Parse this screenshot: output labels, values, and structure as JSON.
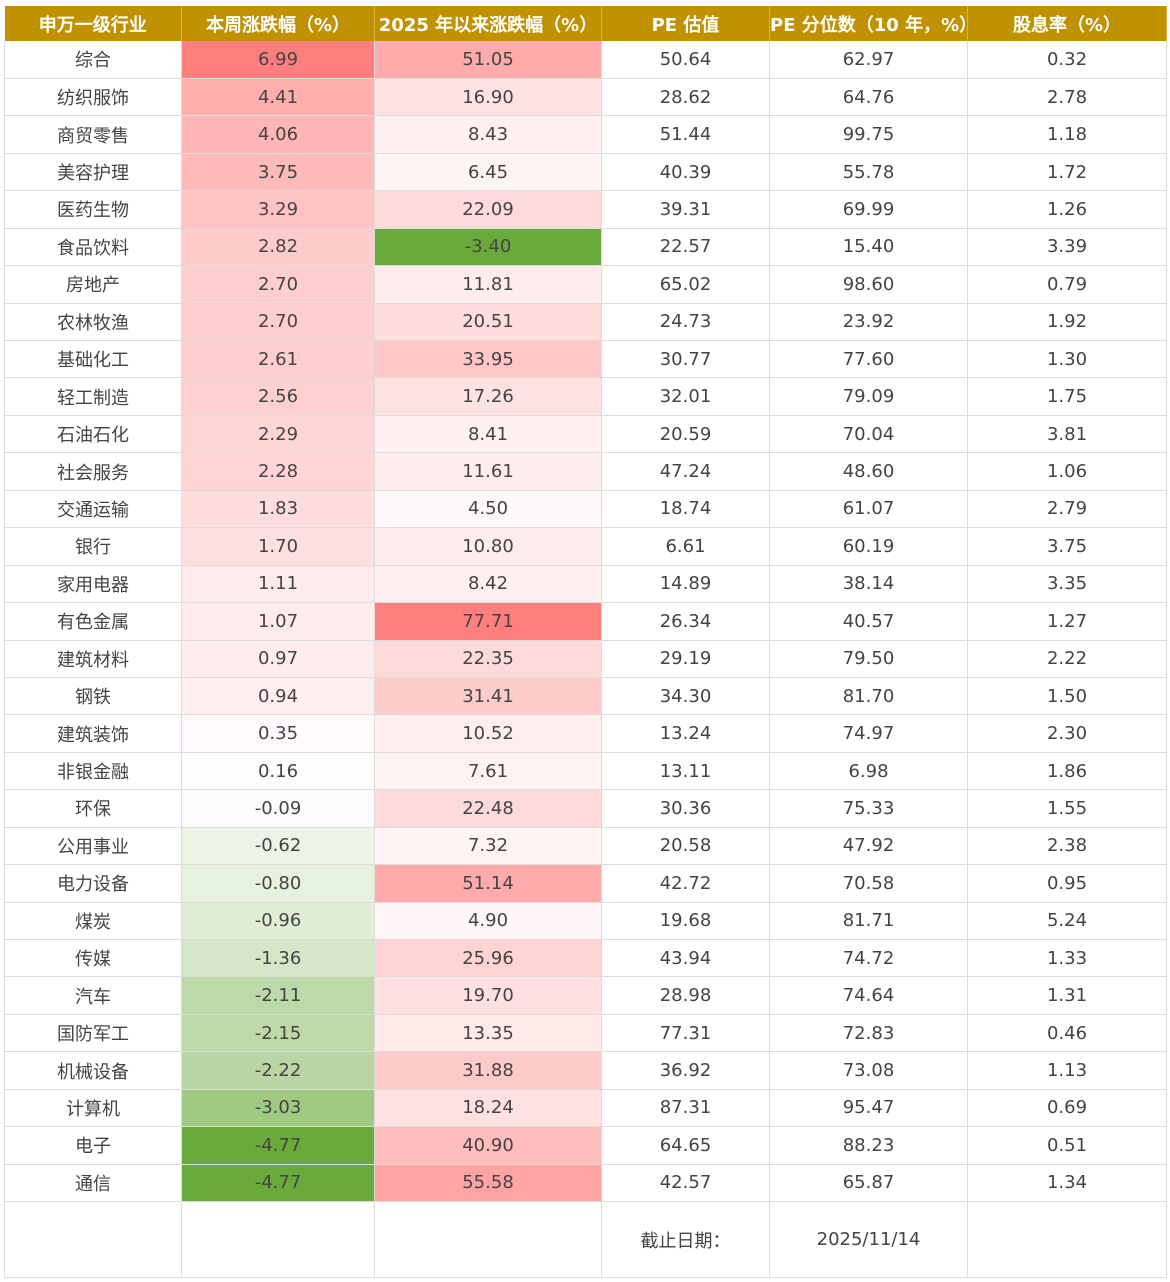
{
  "headers": [
    "申万一级行业",
    "本周涨跌幅（%）",
    "2025 年以来涨跌幅（%）",
    "PE 估值",
    "PE 分位数（10 年，%）",
    "股息率（%）"
  ],
  "rows": [
    [
      "综合",
      "6.99",
      "51.05",
      "50.64",
      "62.97",
      "0.32"
    ],
    [
      "纺织服饰",
      "4.41",
      "16.90",
      "28.62",
      "64.76",
      "2.78"
    ],
    [
      "商贸零售",
      "4.06",
      "8.43",
      "51.44",
      "99.75",
      "1.18"
    ],
    [
      "美容护理",
      "3.75",
      "6.45",
      "40.39",
      "55.78",
      "1.72"
    ],
    [
      "医药生物",
      "3.29",
      "22.09",
      "39.31",
      "69.99",
      "1.26"
    ],
    [
      "食品饮料",
      "2.82",
      "-3.40",
      "22.57",
      "15.40",
      "3.39"
    ],
    [
      "房地产",
      "2.70",
      "11.81",
      "65.02",
      "98.60",
      "0.79"
    ],
    [
      "农林牧渔",
      "2.70",
      "20.51",
      "24.73",
      "23.92",
      "1.92"
    ],
    [
      "基础化工",
      "2.61",
      "33.95",
      "30.77",
      "77.60",
      "1.30"
    ],
    [
      "轻工制造",
      "2.56",
      "17.26",
      "32.01",
      "79.09",
      "1.75"
    ],
    [
      "石油石化",
      "2.29",
      "8.41",
      "20.59",
      "70.04",
      "3.81"
    ],
    [
      "社会服务",
      "2.28",
      "11.61",
      "47.24",
      "48.60",
      "1.06"
    ],
    [
      "交通运输",
      "1.83",
      "4.50",
      "18.74",
      "61.07",
      "2.79"
    ],
    [
      "银行",
      "1.70",
      "10.80",
      "6.61",
      "60.19",
      "3.75"
    ],
    [
      "家用电器",
      "1.11",
      "8.42",
      "14.89",
      "38.14",
      "3.35"
    ],
    [
      "有色金属",
      "1.07",
      "77.71",
      "26.34",
      "40.57",
      "1.27"
    ],
    [
      "建筑材料",
      "0.97",
      "22.35",
      "29.19",
      "79.50",
      "2.22"
    ],
    [
      "钢铁",
      "0.94",
      "31.41",
      "34.30",
      "81.70",
      "1.50"
    ],
    [
      "建筑装饰",
      "0.35",
      "10.52",
      "13.24",
      "74.97",
      "2.30"
    ],
    [
      "非银金融",
      "0.16",
      "7.61",
      "13.11",
      "6.98",
      "1.86"
    ],
    [
      "环保",
      "-0.09",
      "22.48",
      "30.36",
      "75.33",
      "1.55"
    ],
    [
      "公用事业",
      "-0.62",
      "7.32",
      "20.58",
      "47.92",
      "2.38"
    ],
    [
      "电力设备",
      "-0.80",
      "51.14",
      "42.72",
      "70.58",
      "0.95"
    ],
    [
      "煤炭",
      "-0.96",
      "4.90",
      "19.68",
      "81.71",
      "5.24"
    ],
    [
      "传媒",
      "-1.36",
      "25.96",
      "43.94",
      "74.72",
      "1.33"
    ],
    [
      "汽车",
      "-2.11",
      "19.70",
      "28.98",
      "74.64",
      "1.31"
    ],
    [
      "国防军工",
      "-2.15",
      "13.35",
      "77.31",
      "72.83",
      "0.46"
    ],
    [
      "机械设备",
      "-2.22",
      "31.88",
      "36.92",
      "73.08",
      "1.13"
    ],
    [
      "计算机",
      "-3.03",
      "18.24",
      "87.31",
      "95.47",
      "0.69"
    ],
    [
      "电子",
      "-4.77",
      "40.90",
      "64.65",
      "88.23",
      "0.51"
    ],
    [
      "通信",
      "-4.77",
      "55.58",
      "42.57",
      "65.87",
      "1.34"
    ]
  ],
  "footer": {
    "date_label": "截止日期：",
    "date_value": "2025/11/14"
  },
  "colors": {
    "header_bg": "#c09100",
    "header_text": "#ffffff",
    "positive_max": "#ff7f7f",
    "negative_max": "#6aaa3a",
    "neutral": "#ffffff",
    "border": "#dcdcdc"
  }
}
